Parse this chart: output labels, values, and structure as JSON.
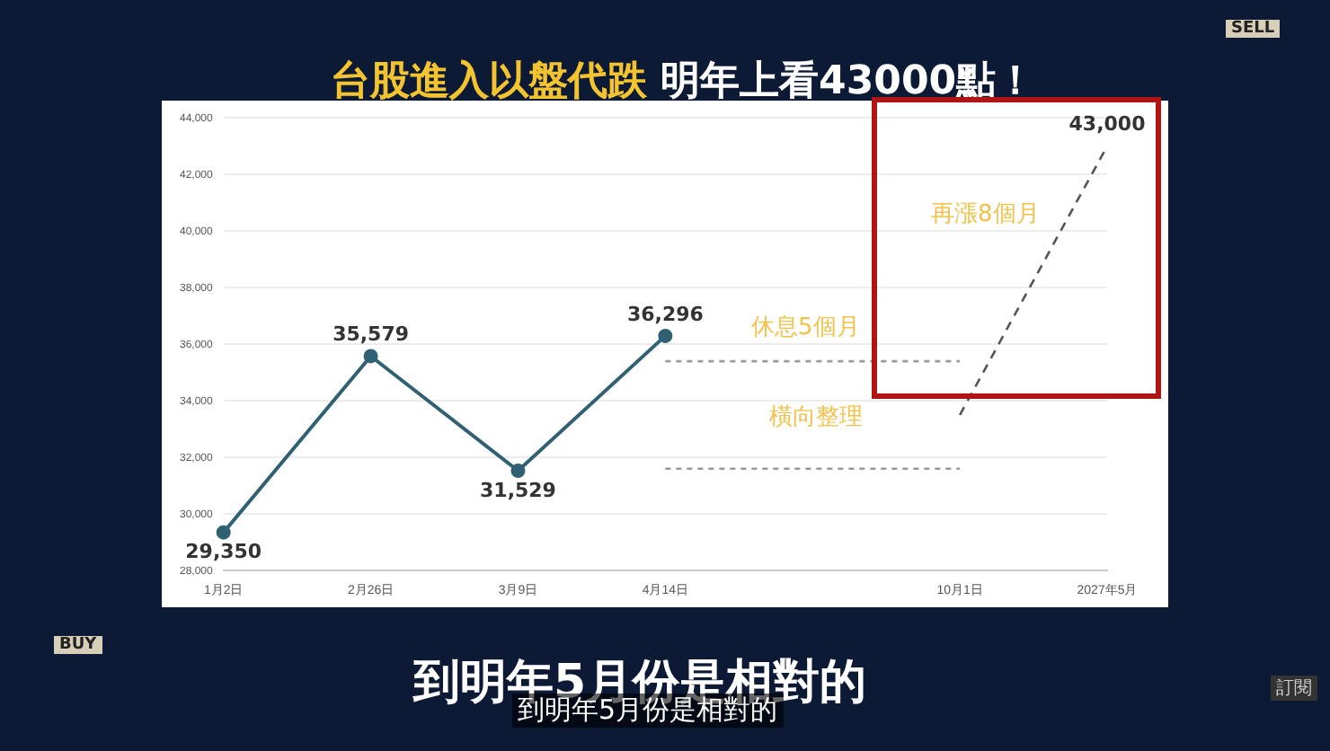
{
  "chart_data": {
    "type": "line",
    "title": "台股進入以盤代跌 明年上看43000點！",
    "categories": [
      "1月2日",
      "2月26日",
      "3月9日",
      "4月14日",
      null,
      "10月1日",
      "2027年5月"
    ],
    "series": [
      {
        "color": "#2f6173",
        "values": [
          29350,
          35579,
          31529,
          36296,
          null,
          null,
          null
        ],
        "marker": "circle",
        "line_style": "solid",
        "value_labels": [
          "29,350",
          "35,579",
          "31,529",
          "36,296",
          null,
          null,
          null
        ]
      },
      {
        "color": "#555555",
        "values": [
          null,
          null,
          null,
          null,
          null,
          33500,
          43000
        ],
        "marker": "none",
        "line_style": "dashed",
        "value_labels": [
          null,
          null,
          null,
          null,
          null,
          null,
          "43,000"
        ]
      },
      {
        "color": "#999999",
        "values": [
          null,
          null,
          null,
          35400,
          35400,
          35400,
          null
        ],
        "marker": "none",
        "line_style": "dotted"
      },
      {
        "color": "#999999",
        "values": [
          null,
          null,
          null,
          31600,
          31600,
          31600,
          null
        ],
        "marker": "none",
        "line_style": "dotted"
      }
    ],
    "ylim": [
      28000,
      44000
    ],
    "yticks": [
      {
        "value": 28000,
        "label": "28,000"
      },
      {
        "value": 30000,
        "label": "30,000"
      },
      {
        "value": 32000,
        "label": "32,000"
      },
      {
        "value": 34000,
        "label": "34,000"
      },
      {
        "value": 36000,
        "label": "36,000"
      },
      {
        "value": 38000,
        "label": "38,000"
      },
      {
        "value": 40000,
        "label": "40,000"
      },
      {
        "value": 42000,
        "label": "42,000"
      },
      {
        "value": 44000,
        "label": "44,000"
      }
    ],
    "grid": "y",
    "legend": false,
    "annotations": [
      "休息5個月",
      "橫向整理",
      "再漲8個月",
      "到明年5月份是相對的",
      "到明年5月份是相對的",
      "SELL",
      "BUY",
      "訂閱"
    ]
  }
}
